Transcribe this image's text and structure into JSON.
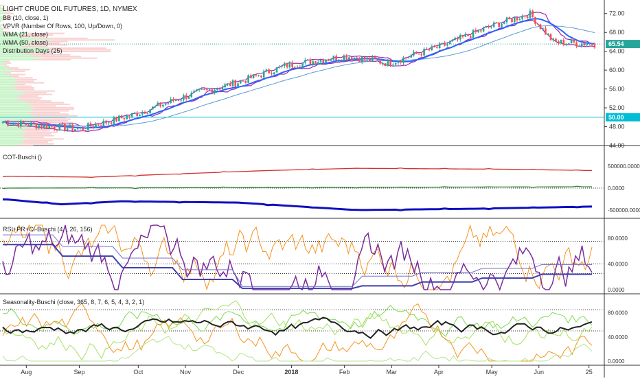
{
  "legend": {
    "title": "LIGHT CRUDE OIL FUTURES, 1D, NYMEX",
    "bb": "BB (10, close, 1)",
    "vpvr": "VPVR (Number Of Rows, 100, Up/Down, 0)",
    "wma21": "WMA (21, close)",
    "wma50": "WMA (50, close)",
    "dist": "Distribution Days (25)"
  },
  "panes": {
    "cot_title": "COT-Buschi ()",
    "rsi_title": "RSI+PR+CI-Buschi (4, , 26, 156)",
    "seas_title": "Seasonality-Buschi (close, 365, 8, 7, 6, 5, 4, 3, 2, 1)"
  },
  "price_badges": {
    "last": "65.54",
    "level": "50.00"
  },
  "colors": {
    "up_candle": "#26a69a",
    "down_candle": "#ef5350",
    "bb": "#9c27b0",
    "wma21": "#2962ff",
    "wma50": "#5b9bd5",
    "level_line": "#00bcd4",
    "cot_red": "#d32f2f",
    "cot_green": "#2e7d32",
    "cot_blue": "#1010c0",
    "rsi_orange": "#f7931e",
    "rsi_purple": "#7b2d9b",
    "rsi_blue": "#3f3fb0",
    "seas_black": "#222222",
    "seas_green": "#7cd850",
    "seas_orange": "#f7931e"
  },
  "chart_data": [
    {
      "type": "candlestick",
      "title": "LIGHT CRUDE OIL FUTURES, 1D, NYMEX",
      "ylim": [
        44,
        74
      ],
      "y_ticks": [
        "72.00",
        "68.00",
        "64.00",
        "60.00",
        "56.00",
        "52.00",
        "48.00",
        "44.00"
      ],
      "x_ticks": [
        "Aug",
        "Sep",
        "Oct",
        "Nov",
        "Dec",
        "2018",
        "Feb",
        "Mar",
        "Apr",
        "May",
        "Jun",
        "25"
      ],
      "last_price": 65.54,
      "horizontal_level": 50.0,
      "close_path": [
        [
          "Aug",
          49.0
        ],
        [
          "Sep",
          47.5
        ],
        [
          "Oct",
          50.5
        ],
        [
          "Nov",
          54.5
        ],
        [
          "Dec",
          57.5
        ],
        [
          "2018",
          61.0
        ],
        [
          "Feb",
          63.0
        ],
        [
          "Mar",
          61.5
        ],
        [
          "Apr",
          65.0
        ],
        [
          "May",
          69.5
        ],
        [
          "May 22",
          72.0
        ],
        [
          "Jun",
          66.0
        ],
        [
          "Jun 20",
          65.54
        ]
      ]
    },
    {
      "type": "line",
      "title": "COT-Buschi ()",
      "y_ticks": [
        "500000.0000",
        "0.0000",
        "-500000.0000"
      ],
      "series": [
        {
          "values_path": [
            [
              0,
              270000
            ],
            [
              0.15,
              250000
            ],
            [
              0.45,
              400000
            ],
            [
              0.6,
              450000
            ],
            [
              0.85,
              430000
            ],
            [
              1,
              400000
            ]
          ]
        },
        {
          "values_path": [
            [
              0,
              0
            ],
            [
              1,
              30000
            ]
          ]
        },
        {
          "values_path": [
            [
              0,
              -250000
            ],
            [
              0.1,
              -370000
            ],
            [
              0.2,
              -300000
            ],
            [
              0.4,
              -330000
            ],
            [
              0.6,
              -500000
            ],
            [
              0.8,
              -470000
            ],
            [
              1,
              -420000
            ]
          ]
        }
      ]
    },
    {
      "type": "line",
      "title": "RSI+PR+CI-Buschi (4, , 26, 156)",
      "ylim": [
        0,
        100
      ],
      "y_ticks": [
        "80.0000",
        "40.0000",
        "0.0000"
      ],
      "reference_lines": [
        75,
        40,
        25
      ]
    },
    {
      "type": "line",
      "title": "Seasonality-Buschi (close, 365, 8, 7, 6, 5, 4, 3, 2, 1)",
      "ylim": [
        0,
        100
      ],
      "y_ticks": [
        "80.0000",
        "40.0000",
        "0.0000"
      ],
      "reference_lines": [
        85,
        50
      ]
    }
  ]
}
